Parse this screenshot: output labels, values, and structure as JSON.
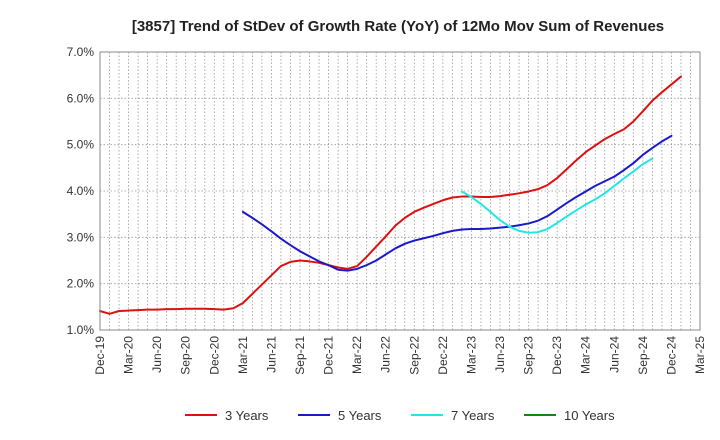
{
  "chart_data": {
    "type": "line",
    "title": "[3857]  Trend of StDev of Growth Rate (YoY) of 12Mo Mov Sum of Revenues",
    "xlabel": "",
    "ylabel": "",
    "ylim": [
      1.0,
      7.0
    ],
    "yticks": [
      "1.0%",
      "2.0%",
      "3.0%",
      "4.0%",
      "5.0%",
      "6.0%",
      "7.0%"
    ],
    "ytick_values": [
      1,
      2,
      3,
      4,
      5,
      6,
      7
    ],
    "x_start": "Dec-19",
    "x_months": 63,
    "xticks": [
      "Dec-19",
      "Mar-20",
      "Jun-20",
      "Sep-20",
      "Dec-20",
      "Mar-21",
      "Jun-21",
      "Sep-21",
      "Dec-21",
      "Mar-22",
      "Jun-22",
      "Sep-22",
      "Dec-22",
      "Mar-23",
      "Jun-23",
      "Sep-23",
      "Dec-23",
      "Mar-24",
      "Jun-24",
      "Sep-24",
      "Dec-24",
      "Mar-25"
    ],
    "grid": true,
    "legend_position": "bottom",
    "series": [
      {
        "name": "3 Years",
        "color": "#dd1111",
        "start_index": 0,
        "values": [
          1.41,
          1.35,
          1.41,
          1.42,
          1.43,
          1.44,
          1.44,
          1.45,
          1.45,
          1.46,
          1.46,
          1.46,
          1.45,
          1.44,
          1.47,
          1.58,
          1.78,
          1.98,
          2.18,
          2.38,
          2.47,
          2.5,
          2.48,
          2.45,
          2.4,
          2.35,
          2.32,
          2.38,
          2.58,
          2.8,
          3.02,
          3.25,
          3.42,
          3.55,
          3.64,
          3.72,
          3.8,
          3.86,
          3.88,
          3.88,
          3.87,
          3.87,
          3.89,
          3.92,
          3.95,
          3.99,
          4.04,
          4.13,
          4.28,
          4.47,
          4.66,
          4.84,
          4.98,
          5.12,
          5.23,
          5.33,
          5.5,
          5.72,
          5.95,
          6.13,
          6.3,
          6.47
        ]
      },
      {
        "name": "5 Years",
        "color": "#1a1acc",
        "start_index": 15,
        "values": [
          3.55,
          3.42,
          3.28,
          3.13,
          2.97,
          2.83,
          2.7,
          2.59,
          2.48,
          2.4,
          2.3,
          2.28,
          2.32,
          2.4,
          2.5,
          2.63,
          2.76,
          2.86,
          2.93,
          2.98,
          3.03,
          3.09,
          3.14,
          3.17,
          3.18,
          3.18,
          3.19,
          3.21,
          3.23,
          3.26,
          3.3,
          3.36,
          3.46,
          3.6,
          3.74,
          3.87,
          3.99,
          4.11,
          4.21,
          4.31,
          4.45,
          4.6,
          4.78,
          4.93,
          5.07,
          5.19
        ]
      },
      {
        "name": "7 Years",
        "color": "#22e6e6",
        "start_index": 38,
        "values": [
          3.99,
          3.87,
          3.72,
          3.55,
          3.37,
          3.23,
          3.14,
          3.1,
          3.11,
          3.18,
          3.31,
          3.45,
          3.58,
          3.71,
          3.82,
          3.95,
          4.11,
          4.27,
          4.42,
          4.58,
          4.7
        ]
      },
      {
        "name": "10 Years",
        "color": "#118811",
        "start_index": 0,
        "values": []
      }
    ]
  }
}
